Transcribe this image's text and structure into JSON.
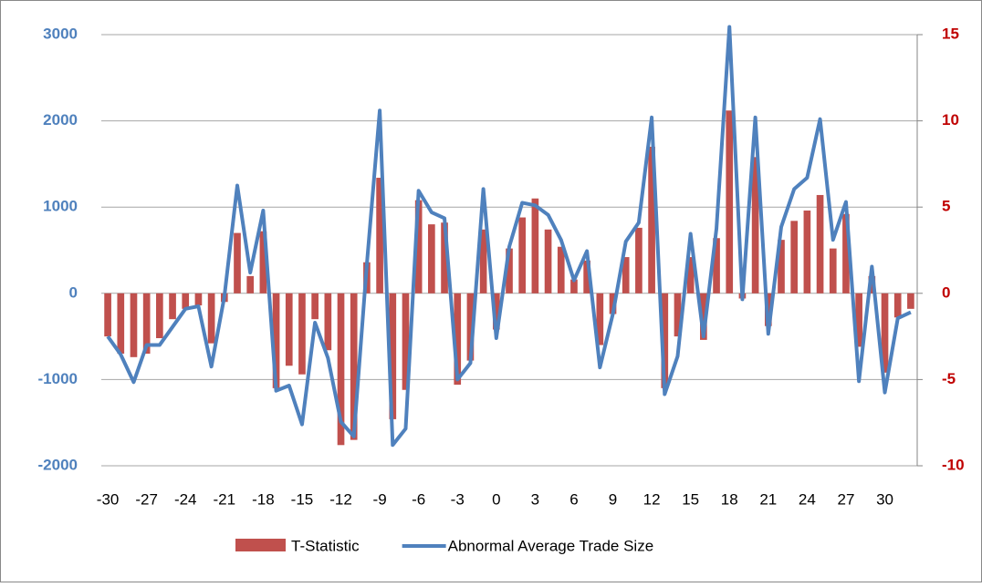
{
  "chart_data": {
    "type": "combo",
    "categories": [
      "-30",
      null,
      null,
      "-27",
      null,
      null,
      "-24",
      null,
      null,
      "-21",
      null,
      null,
      "-18",
      null,
      null,
      "-15",
      null,
      null,
      "-12",
      null,
      null,
      "-9",
      null,
      null,
      "-6",
      null,
      null,
      "-3",
      null,
      null,
      "0",
      null,
      null,
      "3",
      null,
      null,
      "6",
      null,
      null,
      "9",
      null,
      null,
      "12",
      null,
      null,
      "15",
      null,
      null,
      "18",
      null,
      null,
      "21",
      null,
      null,
      "24",
      null,
      null,
      "27",
      null,
      null,
      "30",
      null,
      null
    ],
    "series": [
      {
        "name": "T-Statistic",
        "kind": "bar",
        "axis": "y2",
        "color": "#c0504d",
        "values": [
          -2.5,
          -3.5,
          -3.7,
          -3.5,
          -2.6,
          -1.5,
          -0.9,
          -0.7,
          -2.9,
          -0.5,
          3.5,
          1.0,
          3.6,
          -5.5,
          -4.2,
          -4.7,
          -1.5,
          -3.3,
          -8.8,
          -8.5,
          1.8,
          6.7,
          -7.3,
          -5.6,
          5.4,
          4.0,
          4.1,
          -5.3,
          -3.9,
          3.7,
          -2.1,
          2.6,
          4.4,
          5.5,
          3.7,
          2.7,
          0.8,
          1.9,
          -3.0,
          -1.2,
          2.1,
          3.8,
          8.5,
          -5.5,
          -2.5,
          2.1,
          -2.7,
          3.2,
          10.6,
          -0.3,
          7.9,
          -1.9,
          3.1,
          4.2,
          4.8,
          5.7,
          2.6,
          4.6,
          -3.1,
          1.0,
          -4.6,
          -1.4,
          -0.9
        ]
      },
      {
        "name": "Abnormal Average Trade Size",
        "kind": "line",
        "axis": "y",
        "color": "#4f81bd",
        "values": [
          -500,
          -710,
          -1030,
          -600,
          -600,
          -390,
          -180,
          -150,
          -850,
          -40,
          1250,
          240,
          960,
          -1130,
          -1070,
          -1520,
          -340,
          -750,
          -1490,
          -1660,
          330,
          2120,
          -1760,
          -1570,
          1190,
          940,
          870,
          -1000,
          -810,
          1210,
          -520,
          540,
          1050,
          1020,
          910,
          620,
          150,
          490,
          -860,
          -240,
          600,
          820,
          2040,
          -1170,
          -730,
          690,
          -500,
          750,
          3090,
          -70,
          2040,
          -470,
          770,
          1210,
          1340,
          2020,
          620,
          1060,
          -1020,
          310,
          -1150,
          -290,
          -220
        ]
      }
    ],
    "ylim": [
      -2000,
      3000
    ],
    "yticks": [
      -2000,
      -1000,
      0,
      1000,
      2000,
      3000
    ],
    "y2lim": [
      -10,
      15
    ],
    "y2ticks": [
      -10,
      -5,
      0,
      5,
      10,
      15
    ],
    "grid": true,
    "legend": "bottom"
  }
}
